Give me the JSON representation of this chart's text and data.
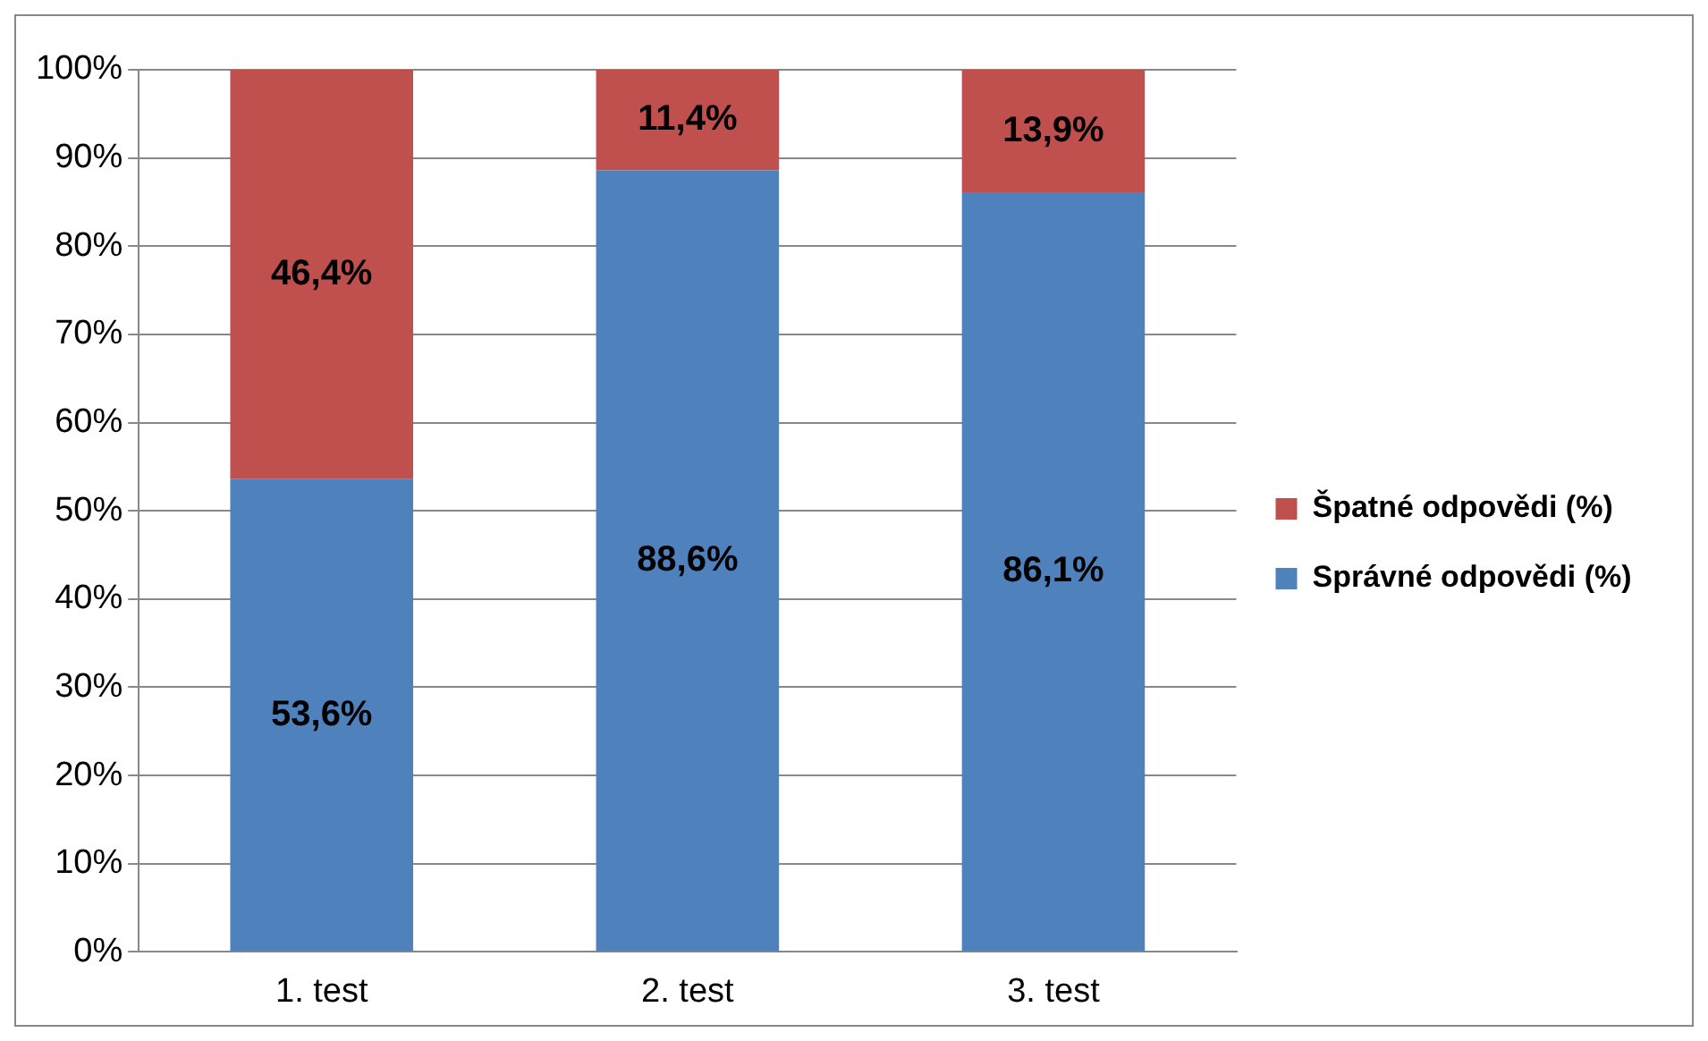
{
  "chart_data": {
    "type": "bar",
    "stacked": true,
    "categories": [
      "1. test",
      "2. test",
      "3. test"
    ],
    "series": [
      {
        "name": "Správné odpovědi (%)",
        "color": "#4f81bd",
        "values": [
          53.6,
          88.6,
          86.1
        ],
        "value_labels": [
          "53,6%",
          "88,6%",
          "86,1%"
        ]
      },
      {
        "name": "Špatné odpovědi (%)",
        "color": "#c0504d",
        "values": [
          46.4,
          11.4,
          13.9
        ],
        "value_labels": [
          "46,4%",
          "11,4%",
          "13,9%"
        ]
      }
    ],
    "ylim": [
      0,
      100
    ],
    "yticks": [
      {
        "value": 0,
        "label": "0%"
      },
      {
        "value": 10,
        "label": "10%"
      },
      {
        "value": 20,
        "label": "20%"
      },
      {
        "value": 30,
        "label": "30%"
      },
      {
        "value": 40,
        "label": "40%"
      },
      {
        "value": 50,
        "label": "50%"
      },
      {
        "value": 60,
        "label": "60%"
      },
      {
        "value": 70,
        "label": "70%"
      },
      {
        "value": 80,
        "label": "80%"
      },
      {
        "value": 90,
        "label": "90%"
      },
      {
        "value": 100,
        "label": "100%"
      }
    ],
    "grid": "y",
    "legend": "right"
  }
}
